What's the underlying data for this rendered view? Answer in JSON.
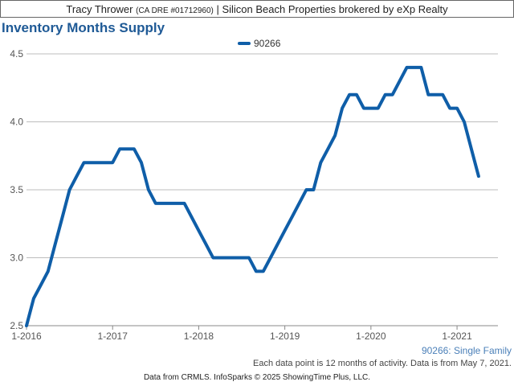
{
  "header": {
    "agent_name": "Tracy Thrower",
    "license": "(CA DRE #01712960)",
    "brokerage": "| Silicon Beach Properties brokered by eXp Realty"
  },
  "chart_data": {
    "type": "line",
    "title": "Inventory Months Supply",
    "xlabel": "",
    "ylabel": "",
    "ylim": [
      2.5,
      4.5
    ],
    "yticks": [
      "2.5",
      "3.0",
      "3.5",
      "4.0",
      "4.5"
    ],
    "xticks": [
      "1-2016",
      "1-2017",
      "1-2018",
      "1-2019",
      "1-2020",
      "1-2021"
    ],
    "legend_position": "top-center",
    "grid": true,
    "series": [
      {
        "name": "90266",
        "color": "#0f5ea8",
        "x": [
          "2016-01",
          "2016-02",
          "2016-03",
          "2016-04",
          "2016-05",
          "2016-06",
          "2016-07",
          "2016-08",
          "2016-09",
          "2016-10",
          "2016-11",
          "2016-12",
          "2017-01",
          "2017-02",
          "2017-03",
          "2017-04",
          "2017-05",
          "2017-06",
          "2017-07",
          "2017-08",
          "2017-09",
          "2017-10",
          "2017-11",
          "2017-12",
          "2018-01",
          "2018-02",
          "2018-03",
          "2018-04",
          "2018-05",
          "2018-06",
          "2018-07",
          "2018-08",
          "2018-09",
          "2018-10",
          "2018-11",
          "2018-12",
          "2019-01",
          "2019-02",
          "2019-03",
          "2019-04",
          "2019-05",
          "2019-06",
          "2019-07",
          "2019-08",
          "2019-09",
          "2019-10",
          "2019-11",
          "2019-12",
          "2020-01",
          "2020-02",
          "2020-03",
          "2020-04",
          "2020-05",
          "2020-06",
          "2020-07",
          "2020-08",
          "2020-09",
          "2020-10",
          "2020-11",
          "2020-12",
          "2021-01",
          "2021-02",
          "2021-03",
          "2021-04"
        ],
        "values": [
          2.5,
          2.7,
          2.8,
          2.9,
          3.1,
          3.3,
          3.5,
          3.6,
          3.7,
          3.7,
          3.7,
          3.7,
          3.7,
          3.8,
          3.8,
          3.8,
          3.7,
          3.5,
          3.4,
          3.4,
          3.4,
          3.4,
          3.4,
          3.3,
          3.2,
          3.1,
          3.0,
          3.0,
          3.0,
          3.0,
          3.0,
          3.0,
          2.9,
          2.9,
          3.0,
          3.1,
          3.2,
          3.3,
          3.4,
          3.5,
          3.5,
          3.7,
          3.8,
          3.9,
          4.1,
          4.2,
          4.2,
          4.1,
          4.1,
          4.1,
          4.2,
          4.2,
          4.3,
          4.4,
          4.4,
          4.4,
          4.2,
          4.2,
          4.2,
          4.1,
          4.1,
          4.0,
          3.8,
          3.6
        ]
      }
    ]
  },
  "subtitle": "90266: Single Family",
  "note": "Each data point is 12 months of activity. Data is from May 7, 2021.",
  "footer": "Data from CRMLS. InfoSparks © 2025 ShowingTime Plus, LLC."
}
